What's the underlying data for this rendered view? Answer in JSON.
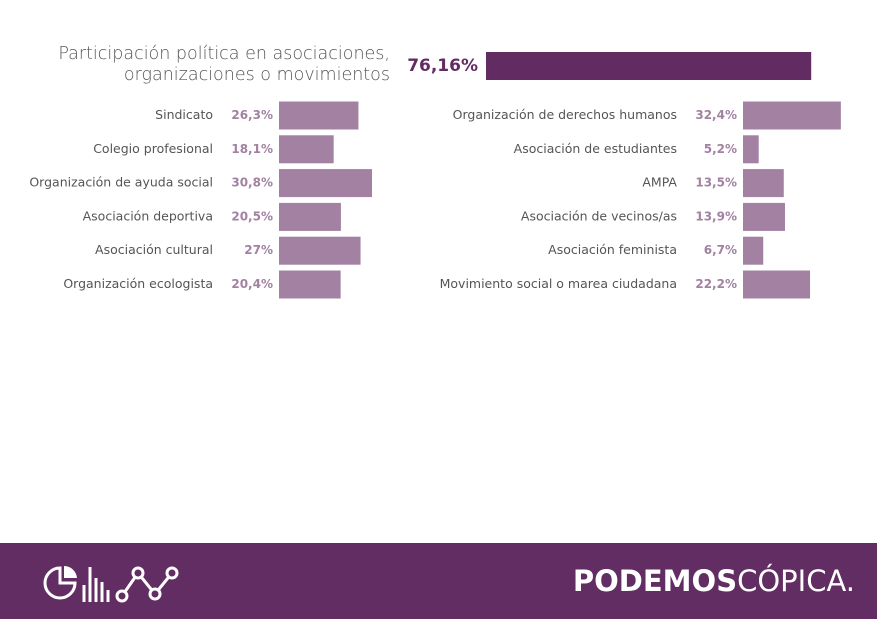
{
  "chart_data": {
    "type": "bar",
    "title": "Participación política en asociaciones, organizaciones o movimientos",
    "total": {
      "value": 76.16,
      "value_label": "76,16%",
      "color": "#622c62"
    },
    "series": [
      {
        "color": "#a281a2",
        "categories": [
          "Sindicato",
          "Colegio profesional",
          "Organización de ayuda social",
          "Asociación deportiva",
          "Asociación cultural",
          "Organización ecologista"
        ],
        "values": [
          26.3,
          18.1,
          30.8,
          20.5,
          27,
          20.4
        ],
        "value_labels": [
          "26,3%",
          "18,1%",
          "30,8%",
          "20,5%",
          "27%",
          "20,4%"
        ]
      },
      {
        "color": "#a281a2",
        "categories": [
          "Organización de derechos humanos",
          "Asociación de estudiantes",
          "AMPA",
          "Asociación de vecinos/as",
          "Asociación feminista",
          "Movimiento social o marea ciudadana"
        ],
        "values": [
          32.4,
          5.2,
          13.5,
          13.9,
          6.7,
          22.2
        ],
        "value_labels": [
          "32,4%",
          "5,2%",
          "13,5%",
          "13,9%",
          "6,7%",
          "22,2%"
        ]
      }
    ]
  },
  "footer": {
    "brand_bold": "PODEMOS",
    "brand_light": "CÓPICA."
  }
}
